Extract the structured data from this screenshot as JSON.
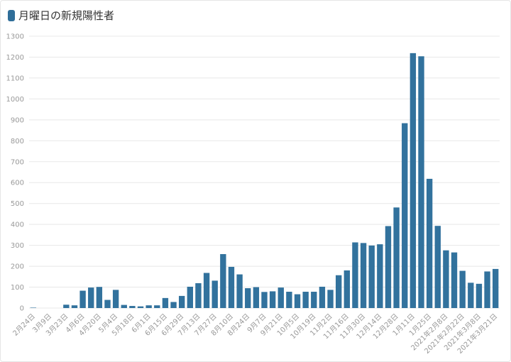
{
  "title": "月曜日の新規陽性者",
  "colors": {
    "bar": "#32729d",
    "title_icon": "#2f6e99",
    "grid": "#e8e8e8",
    "tick_text": "#999999"
  },
  "chart_data": {
    "type": "bar",
    "title": "月曜日の新規陽性者",
    "xlabel": "",
    "ylabel": "",
    "ylim": [
      0,
      1300
    ],
    "yticks": [
      0,
      100,
      200,
      300,
      400,
      500,
      600,
      700,
      800,
      900,
      1000,
      1100,
      1200,
      1300
    ],
    "grid": true,
    "legend": "none",
    "categories": [
      "2月24日",
      "",
      "3月9日",
      "",
      "3月23日",
      "",
      "4月6日",
      "",
      "4月20日",
      "",
      "5月4日",
      "",
      "5月18日",
      "",
      "6月1日",
      "",
      "6月15日",
      "",
      "6月29日",
      "",
      "7月13日",
      "",
      "7月27日",
      "",
      "8月10日",
      "",
      "8月24日",
      "",
      "9月7日",
      "",
      "9月21日",
      "",
      "10月5日",
      "",
      "10月19日",
      "",
      "11月2日",
      "",
      "11月16日",
      "",
      "11月30日",
      "",
      "12月14日",
      "",
      "12月28日",
      "",
      "1月11日",
      "",
      "1月25日",
      "",
      "2021年2月8日",
      "",
      "2021年2月22日",
      "",
      "2021年3月8日",
      "",
      "2021年3月21日"
    ],
    "values": [
      2,
      0,
      0,
      0,
      16,
      13,
      83,
      98,
      101,
      39,
      87,
      15,
      10,
      8,
      13,
      13,
      48,
      29,
      58,
      102,
      119,
      168,
      131,
      258,
      197,
      161,
      95,
      100,
      77,
      80,
      98,
      78,
      66,
      78,
      78,
      102,
      87,
      157,
      180,
      314,
      311,
      299,
      305,
      392,
      481,
      884,
      1219,
      1204,
      618,
      393,
      276,
      266,
      178,
      121,
      116,
      175,
      187
    ]
  }
}
